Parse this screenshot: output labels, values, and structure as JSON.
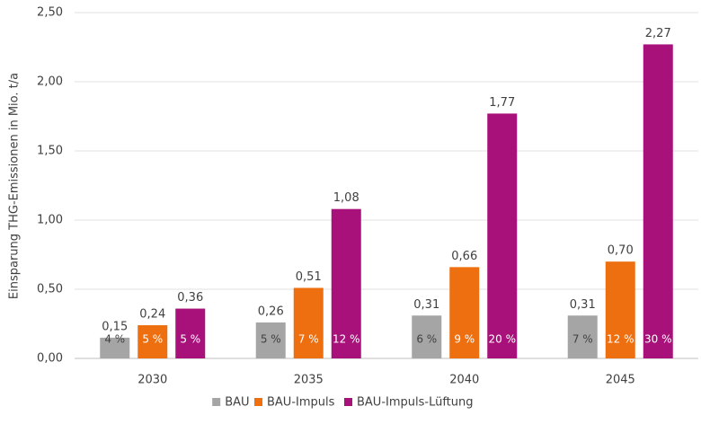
{
  "chart_data": {
    "type": "bar",
    "y_label": "Einsparung THG-Emissionen in Mio. t/a",
    "categories": [
      "2030",
      "2035",
      "2040",
      "2045"
    ],
    "series": [
      {
        "name": "BAU",
        "color": "#a5a5a5",
        "values": [
          0.15,
          0.26,
          0.31,
          0.31
        ],
        "value_labels": [
          "0,15",
          "0,26",
          "0,31",
          "0,31"
        ],
        "share_labels": [
          "4 %",
          "5 %",
          "6 %",
          "7 %"
        ]
      },
      {
        "name": "BAU-Impuls",
        "color": "#ed6f10",
        "values": [
          0.24,
          0.51,
          0.66,
          0.7
        ],
        "value_labels": [
          "0,24",
          "0,51",
          "0,66",
          "0,70"
        ],
        "share_labels": [
          "5 %",
          "7 %",
          "9 %",
          "12 %"
        ]
      },
      {
        "name": "BAU-Impuls-Lüftung",
        "color": "#a8117a",
        "values": [
          0.36,
          1.08,
          1.77,
          2.27
        ],
        "value_labels": [
          "0,36",
          "1,08",
          "1,77",
          "2,27"
        ],
        "share_labels": [
          "5 %",
          "12 %",
          "20 %",
          "30 %"
        ]
      }
    ],
    "ylim": [
      0,
      2.5
    ],
    "yticks": [
      {
        "value": 0,
        "label": "0,00"
      },
      {
        "value": 0.5,
        "label": "0,50"
      },
      {
        "value": 1,
        "label": "1,00"
      },
      {
        "value": 1.5,
        "label": "1,50"
      },
      {
        "value": 2,
        "label": "2,00"
      },
      {
        "value": 2.5,
        "label": "2,50"
      }
    ],
    "grid": true,
    "legend": "bottom"
  }
}
